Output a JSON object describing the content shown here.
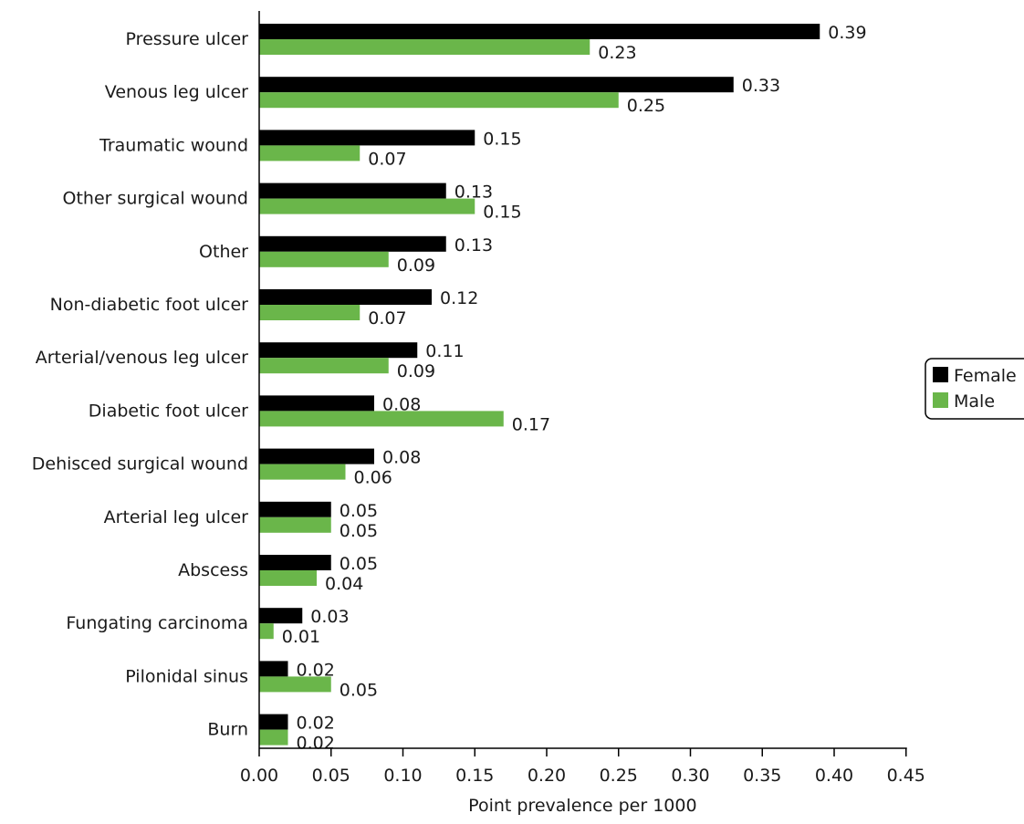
{
  "chart_data": {
    "type": "bar",
    "orientation": "horizontal",
    "categories": [
      "Pressure ulcer",
      "Venous leg ulcer",
      "Traumatic wound",
      "Other surgical wound",
      "Other",
      "Non-diabetic foot ulcer",
      "Arterial/venous leg ulcer",
      "Diabetic foot ulcer",
      "Dehisced surgical wound",
      "Arterial leg ulcer",
      "Abscess",
      "Fungating carcinoma",
      "Pilonidal sinus",
      "Burn"
    ],
    "series": [
      {
        "name": "Female",
        "color": "#000000",
        "values": [
          0.39,
          0.33,
          0.15,
          0.13,
          0.13,
          0.12,
          0.11,
          0.08,
          0.08,
          0.05,
          0.05,
          0.03,
          0.02,
          0.02
        ],
        "labels": [
          "0.39",
          "0.33",
          "0.15",
          "0.13",
          "0.13",
          "0.12",
          "0.11",
          "0.08",
          "0.08",
          "0.05",
          "0.05",
          "0.03",
          "0.02",
          "0.02"
        ]
      },
      {
        "name": "Male",
        "color": "#6ab64a",
        "values": [
          0.23,
          0.25,
          0.07,
          0.15,
          0.09,
          0.07,
          0.09,
          0.17,
          0.06,
          0.05,
          0.04,
          0.01,
          0.05,
          0.02
        ],
        "labels": [
          "0.23",
          "0.25",
          "0.07",
          "0.15",
          "0.09",
          "0.07",
          "0.09",
          "0.17",
          "0.06",
          "0.05",
          "0.04",
          "0.01",
          "0.05",
          "0.02"
        ]
      }
    ],
    "xlabel": "Point prevalence per 1000",
    "ylabel": "",
    "xlim": [
      0,
      0.45
    ],
    "xticks": [
      0,
      0.05,
      0.1,
      0.15,
      0.2,
      0.25,
      0.3,
      0.35,
      0.4,
      0.45
    ],
    "xtick_labels": [
      "0.00",
      "0.05",
      "0.10",
      "0.15",
      "0.20",
      "0.25",
      "0.30",
      "0.35",
      "0.40",
      "0.45"
    ],
    "grid": false,
    "legend": {
      "position": "right",
      "entries": [
        "Female",
        "Male"
      ]
    }
  }
}
